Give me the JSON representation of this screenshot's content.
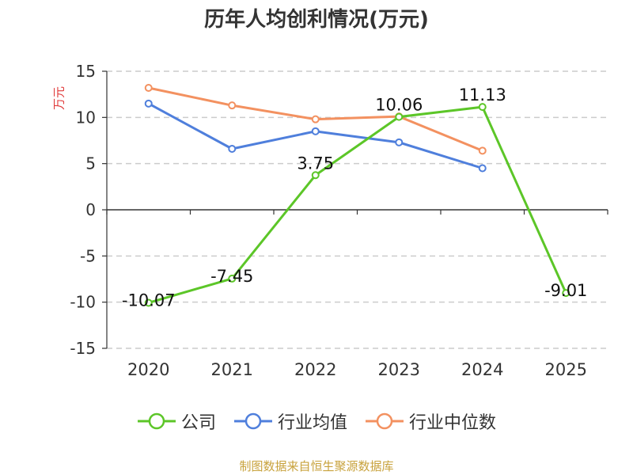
{
  "title": "历年人均创利情况(万元)",
  "y_unit": "万元",
  "source": "制图数据来自恒生聚源数据库",
  "colors": {
    "公司": "#5cc628",
    "行业均值": "#4f7fdc",
    "行业中位数": "#f39160",
    "grid": "#cccccc",
    "axis": "#333333",
    "y_unit": "#e03a3a",
    "source": "#c8a23c"
  },
  "chart_data": {
    "type": "line",
    "title": "历年人均创利情况(万元)",
    "ylabel": "万元",
    "xlabel": "",
    "categories": [
      "2020",
      "2021",
      "2022",
      "2023",
      "2024",
      "2025"
    ],
    "ylim": [
      -15,
      15
    ],
    "yticks": [
      15,
      10,
      5,
      0,
      -5,
      -10,
      -15
    ],
    "grid": true,
    "legend": "bottom",
    "series": [
      {
        "name": "公司",
        "values": [
          -10.07,
          -7.45,
          3.75,
          10.06,
          11.13,
          -9.01
        ],
        "labels": [
          "-10.07",
          "-7.45",
          "3.75",
          "10.06",
          "11.13",
          "-9.01"
        ]
      },
      {
        "name": "行业均值",
        "values": [
          11.5,
          6.6,
          8.5,
          7.3,
          4.5,
          null
        ]
      },
      {
        "name": "行业中位数",
        "values": [
          13.2,
          11.3,
          9.8,
          10.1,
          6.4,
          null
        ]
      }
    ]
  }
}
